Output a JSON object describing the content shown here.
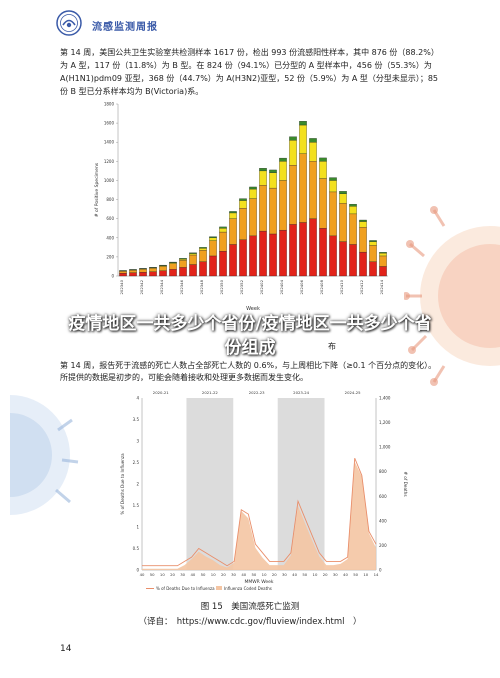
{
  "header": {
    "title": "流感监测周报"
  },
  "paragraph1": "第 14 周，美国公共卫生实验室共检测样本 1617 份，检出 993 份流感阳性样本，其中 876 份（88.2%）为 A 型，117 份（11.8%）为 B 型。在 824 份（94.1%）已分型的 A 型样本中，456 份（55.3%）为 A(H1N1)pdm09 亚型，368 份（44.7%）为 A(H3N2)亚型，52 份（5.9%）为 A 型（分型未显示）；85 份 B 型已分系样本均为 B(Victoria)系。",
  "overlay_title": "疫情地区一共多少个省份/疫情地区一共多少个省份组成",
  "caption_fragment": "布",
  "paragraph2": "第 14 周，报告死于流感的死亡人数占全部死亡人数的 0.6%，与上周相比下降（≥0.1 个百分点的变化）。所提供的数据是初步的，可能会随着接收和处理更多数据而发生变化。",
  "figure15": {
    "caption": "图 15　美国流感死亡监测",
    "source": "（译自：　https://www.cdc.gov/fluview/index.html　）"
  },
  "page_number": "14",
  "colors": {
    "header_blue": "#3a5aa8",
    "red": "#e2231a",
    "orange": "#f0a020",
    "yellow": "#f3e01e",
    "green": "#3a8a2c",
    "deaths_line": "#e98e6a",
    "deaths_fill": "#f4c5a3",
    "shade": "#dcdcdc"
  },
  "chart_data": [
    {
      "type": "bar",
      "stacked": true,
      "xlabel": "Week",
      "ylabel": "# of Positive Specimens",
      "ylim": [
        0,
        1800
      ],
      "yticks": [
        0,
        200,
        400,
        600,
        800,
        1000,
        1200,
        1400,
        1600,
        1800
      ],
      "xtick_labels": [
        "202340",
        "202342",
        "202344",
        "202346",
        "202348",
        "202350",
        "202352",
        "202402",
        "202404",
        "202406",
        "202408",
        "202410",
        "202412",
        "202414"
      ],
      "categories": [
        "40",
        "41",
        "42",
        "43",
        "44",
        "45",
        "46",
        "47",
        "48",
        "49",
        "50",
        "51",
        "52",
        "01",
        "02",
        "03",
        "04",
        "05",
        "06",
        "07",
        "08",
        "09",
        "10",
        "11",
        "12",
        "13",
        "14"
      ],
      "series": [
        {
          "values": [
            30,
            35,
            40,
            45,
            55,
            70,
            90,
            120,
            150,
            210,
            260,
            330,
            380,
            420,
            470,
            440,
            480,
            540,
            560,
            600,
            500,
            420,
            360,
            330,
            250,
            150,
            100
          ]
        },
        {
          "values": [
            20,
            25,
            30,
            35,
            45,
            60,
            75,
            100,
            120,
            160,
            200,
            270,
            330,
            390,
            480,
            480,
            520,
            620,
            720,
            600,
            520,
            460,
            400,
            320,
            260,
            170,
            110
          ]
        },
        {
          "values": [
            3,
            4,
            5,
            6,
            8,
            10,
            12,
            15,
            20,
            30,
            40,
            60,
            80,
            100,
            150,
            160,
            200,
            260,
            300,
            200,
            180,
            120,
            100,
            80,
            60,
            40,
            30
          ]
        },
        {
          "values": [
            5,
            5,
            5,
            6,
            6,
            6,
            8,
            8,
            10,
            12,
            14,
            16,
            20,
            22,
            28,
            30,
            34,
            38,
            40,
            40,
            36,
            30,
            26,
            22,
            16,
            12,
            8
          ]
        }
      ]
    },
    {
      "type": "line",
      "xlabel": "MMWR Week",
      "ylabel": "% of Deaths Due to Influenza",
      "y2label": "# of Deaths",
      "ylim": [
        0,
        4
      ],
      "yticks": [
        0,
        0.5,
        1,
        1.5,
        2,
        2.5,
        3,
        3.5,
        4
      ],
      "y2lim": [
        0,
        1400
      ],
      "y2ticks": [
        0,
        200,
        400,
        600,
        800,
        1000,
        1200,
        1400
      ],
      "season_labels": [
        "2020-21",
        "2021-22",
        "2022-23",
        "2023-24",
        "2024-25"
      ],
      "xtick_labels": [
        "40",
        "50",
        "10",
        "20",
        "30",
        "40",
        "50",
        "10",
        "20",
        "30",
        "40",
        "50",
        "10",
        "20",
        "30",
        "40",
        "50",
        "10",
        "20",
        "30",
        "40",
        "50",
        "10",
        "14"
      ],
      "legend": [
        "% of Deaths Due to Influenza",
        "Influenza Coded Deaths"
      ],
      "series": [
        {
          "name": "% of Deaths Due to Influenza",
          "values": [
            0.1,
            0.1,
            0.1,
            0.1,
            0.1,
            0.1,
            0.2,
            0.3,
            0.5,
            0.4,
            0.3,
            0.2,
            0.1,
            0.2,
            1.4,
            1.3,
            0.6,
            0.4,
            0.2,
            0.2,
            0.2,
            0.4,
            1.6,
            1.2,
            0.8,
            0.4,
            0.2,
            0.2,
            0.2,
            0.3,
            2.6,
            2.2,
            0.9,
            0.6
          ]
        },
        {
          "name": "Influenza Coded Deaths",
          "values": [
            10,
            10,
            10,
            10,
            10,
            10,
            40,
            90,
            150,
            110,
            80,
            40,
            20,
            60,
            480,
            420,
            180,
            100,
            40,
            40,
            40,
            120,
            520,
            380,
            240,
            110,
            40,
            40,
            50,
            90,
            880,
            760,
            300,
            180
          ]
        }
      ]
    }
  ]
}
